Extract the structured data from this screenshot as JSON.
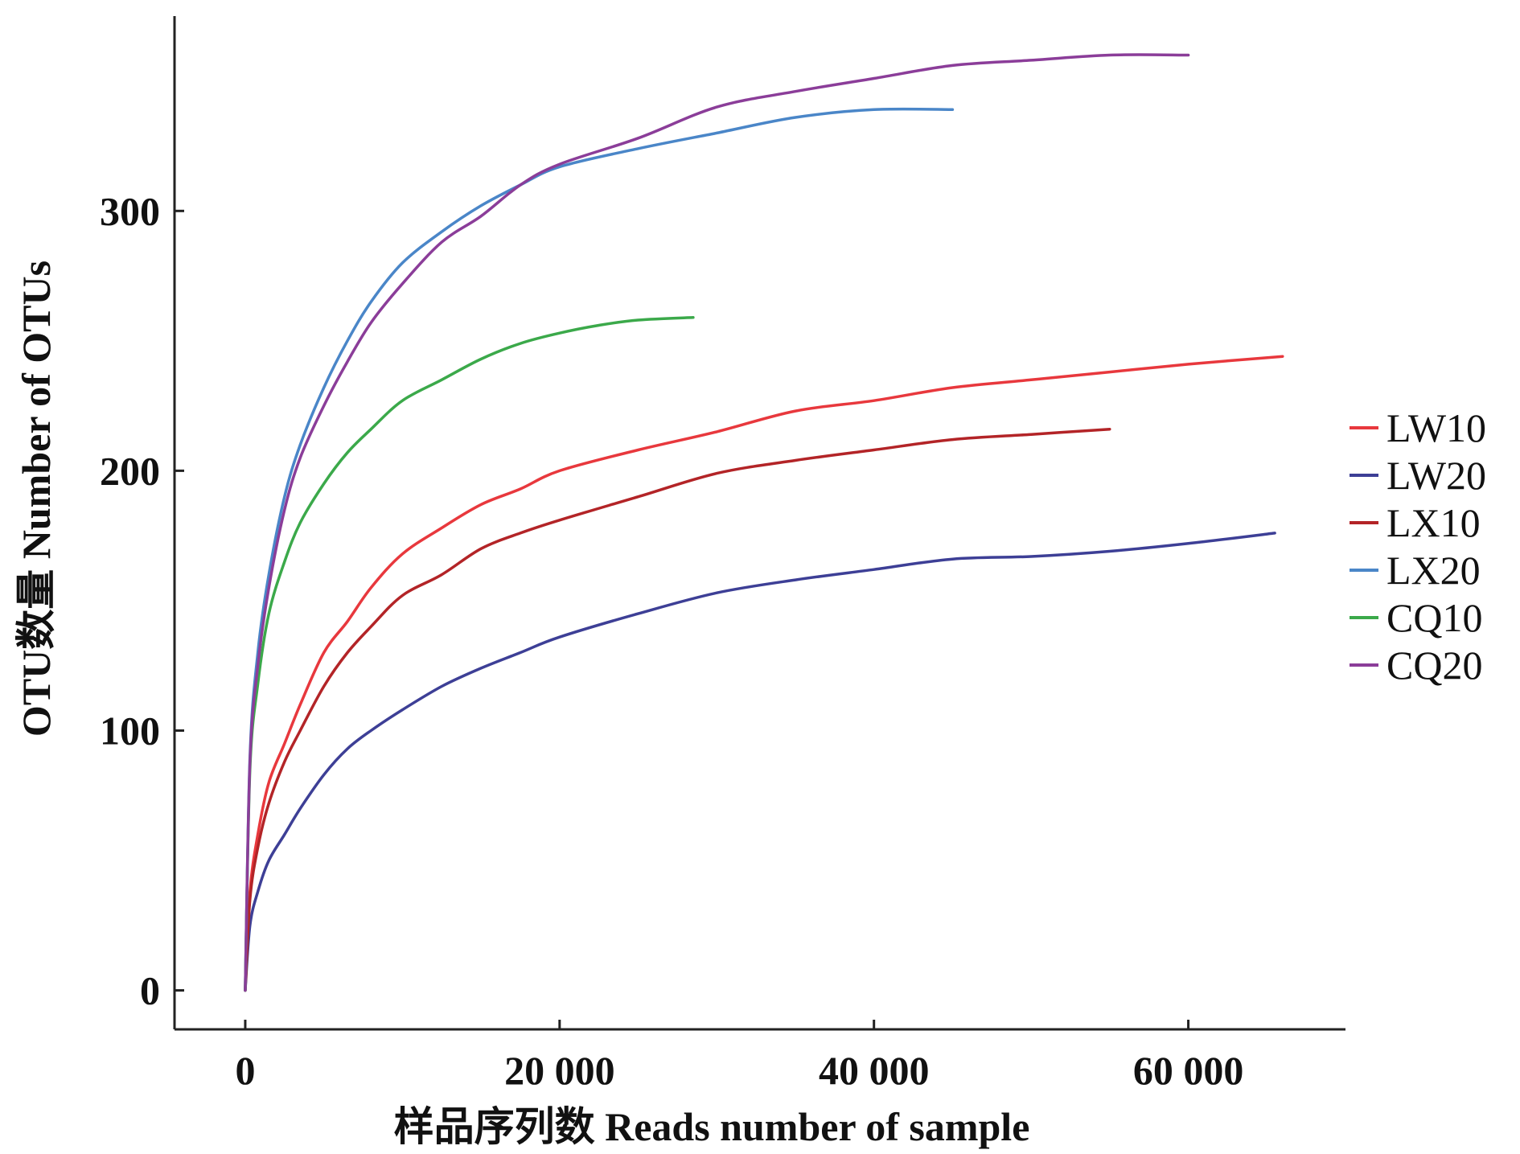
{
  "chart_data": {
    "type": "line",
    "title": "",
    "xlabel": "样品序列数 Reads number of sample",
    "ylabel": "OTU数量 Number of OTUs",
    "xlim": [
      -4500,
      70000
    ],
    "ylim": [
      -15,
      375
    ],
    "x_ticks": [
      {
        "value": 0,
        "label": "0"
      },
      {
        "value": 20000,
        "label": "20 000"
      },
      {
        "value": 40000,
        "label": "40 000"
      },
      {
        "value": 60000,
        "label": "60 000"
      }
    ],
    "y_ticks": [
      {
        "value": 0,
        "label": "0"
      },
      {
        "value": 100,
        "label": "100"
      },
      {
        "value": 200,
        "label": "200"
      },
      {
        "value": 300,
        "label": "300"
      }
    ],
    "grid": false,
    "legend_position": "right",
    "series": [
      {
        "name": "LW10",
        "color": "#e8383d",
        "x": [
          0,
          300,
          800,
          1500,
          2500,
          3500,
          5000,
          6500,
          8000,
          10000,
          12500,
          15000,
          17500,
          20000,
          25000,
          30000,
          35000,
          40000,
          45000,
          50000,
          55000,
          60000,
          66000
        ],
        "y": [
          0,
          38,
          60,
          80,
          95,
          110,
          130,
          142,
          155,
          168,
          178,
          187,
          193,
          200,
          208,
          215,
          223,
          227,
          232,
          235,
          238,
          241,
          244
        ]
      },
      {
        "name": "LW20",
        "color": "#3d3f96",
        "x": [
          0,
          300,
          800,
          1500,
          2500,
          3500,
          5000,
          6500,
          8000,
          10000,
          12500,
          15000,
          17500,
          20000,
          25000,
          30000,
          35000,
          40000,
          45000,
          50000,
          55000,
          60000,
          65500
        ],
        "y": [
          0,
          25,
          38,
          50,
          60,
          70,
          83,
          93,
          100,
          108,
          117,
          124,
          130,
          136,
          145,
          153,
          158,
          162,
          166,
          167,
          169,
          172,
          176
        ]
      },
      {
        "name": "LX10",
        "color": "#b32427",
        "x": [
          0,
          300,
          800,
          1500,
          2500,
          3500,
          5000,
          6500,
          8000,
          10000,
          12500,
          15000,
          17500,
          20000,
          25000,
          30000,
          35000,
          40000,
          45000,
          50000,
          55000
        ],
        "y": [
          0,
          35,
          55,
          72,
          88,
          100,
          117,
          130,
          140,
          152,
          160,
          170,
          176,
          181,
          190,
          199,
          204,
          208,
          212,
          214,
          216
        ]
      },
      {
        "name": "LX20",
        "color": "#4a86c8",
        "x": [
          0,
          300,
          800,
          1500,
          2500,
          3500,
          5000,
          6500,
          8000,
          10000,
          12500,
          15000,
          17500,
          20000,
          25000,
          30000,
          35000,
          40000,
          45000
        ],
        "y": [
          0,
          90,
          130,
          160,
          190,
          210,
          232,
          250,
          265,
          280,
          292,
          302,
          310,
          317,
          324,
          330,
          336,
          339,
          339
        ]
      },
      {
        "name": "CQ10",
        "color": "#3ba94a",
        "x": [
          0,
          300,
          800,
          1500,
          2500,
          3500,
          5000,
          6500,
          8000,
          10000,
          12500,
          15000,
          17500,
          20000,
          22500,
          25000,
          28500
        ],
        "y": [
          0,
          85,
          118,
          145,
          165,
          180,
          195,
          207,
          216,
          227,
          235,
          243,
          249,
          253,
          256,
          258,
          259
        ]
      },
      {
        "name": "CQ20",
        "color": "#8b3d99",
        "x": [
          0,
          300,
          800,
          1500,
          2500,
          3500,
          5000,
          6500,
          8000,
          10000,
          12500,
          15000,
          17500,
          20000,
          25000,
          30000,
          35000,
          40000,
          45000,
          50000,
          55000,
          60000
        ],
        "y": [
          0,
          88,
          125,
          155,
          185,
          205,
          225,
          242,
          257,
          272,
          288,
          298,
          310,
          318,
          328,
          340,
          346,
          351,
          356,
          358,
          360,
          360
        ]
      }
    ]
  }
}
